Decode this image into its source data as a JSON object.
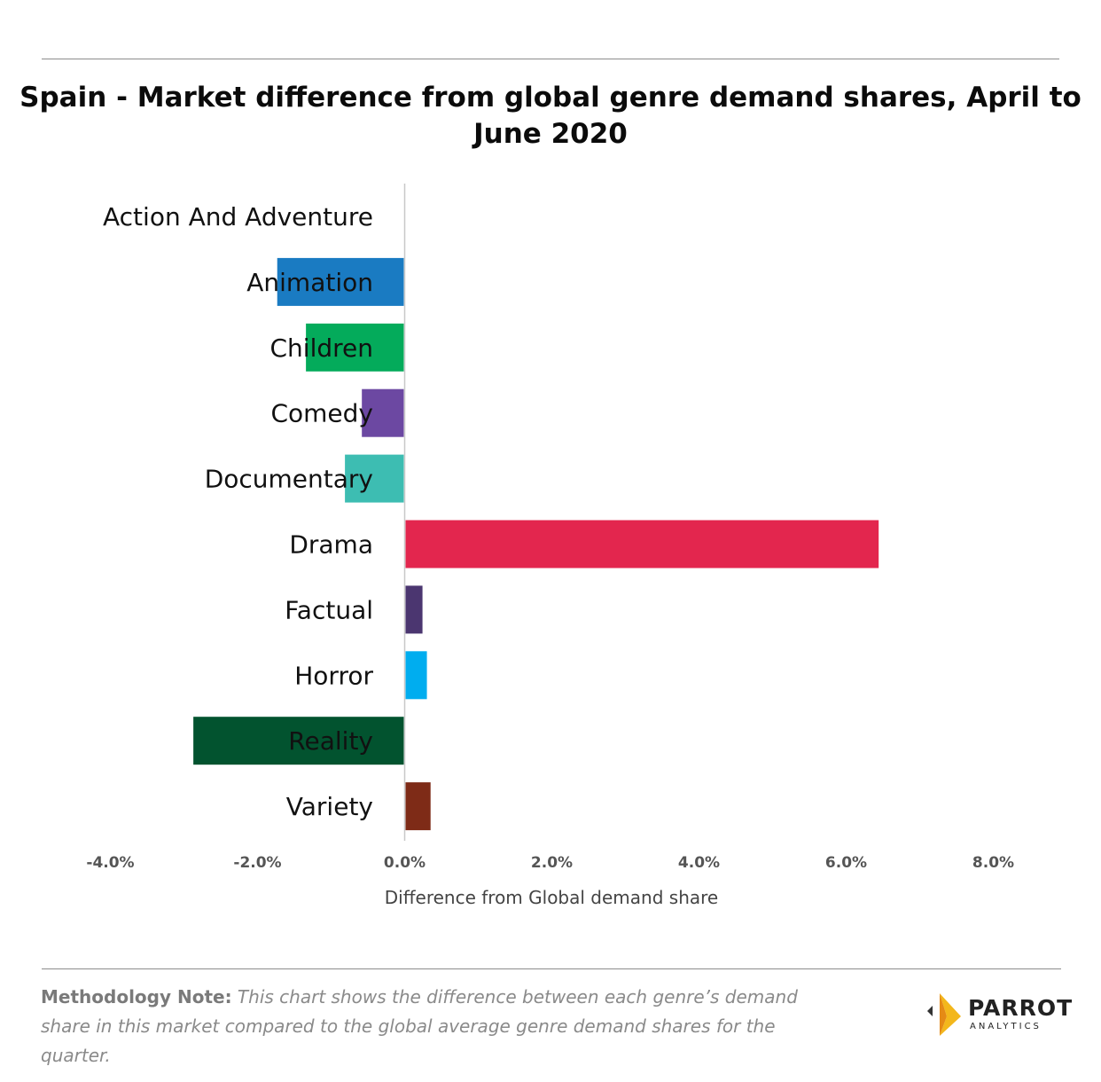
{
  "chart_data": {
    "type": "bar",
    "orientation": "horizontal",
    "title": "Spain - Market difference from global genre demand shares, April to June 2020",
    "xlabel": "Difference from Global demand share",
    "ylabel": "",
    "xlim": [
      -4.0,
      8.0
    ],
    "xticks": [
      "-4.0%",
      "-2.0%",
      "0.0%",
      "2.0%",
      "4.0%",
      "6.0%",
      "8.0%"
    ],
    "grid": false,
    "categories": [
      "Action And Adventure",
      "Animation",
      "Children",
      "Comedy",
      "Documentary",
      "Drama",
      "Factual",
      "Horror",
      "Reality",
      "Variety"
    ],
    "values": [
      0.0,
      -1.72,
      -1.33,
      -0.57,
      -0.8,
      6.43,
      0.23,
      0.29,
      -2.86,
      0.34
    ],
    "colors": [
      "#1d8fd6",
      "#1a7bc2",
      "#04ab5b",
      "#6c48a2",
      "#3dbdb2",
      "#e3264e",
      "#4b3670",
      "#00adef",
      "#02532f",
      "#7e2b17"
    ]
  },
  "footer": {
    "note_label": "Methodology Note:",
    "note_text": " This chart shows the difference between each genre’s demand share in this market compared to the global average genre demand shares for the quarter."
  },
  "logo": {
    "brand": "PARROT",
    "sub": "ANALYTICS"
  }
}
